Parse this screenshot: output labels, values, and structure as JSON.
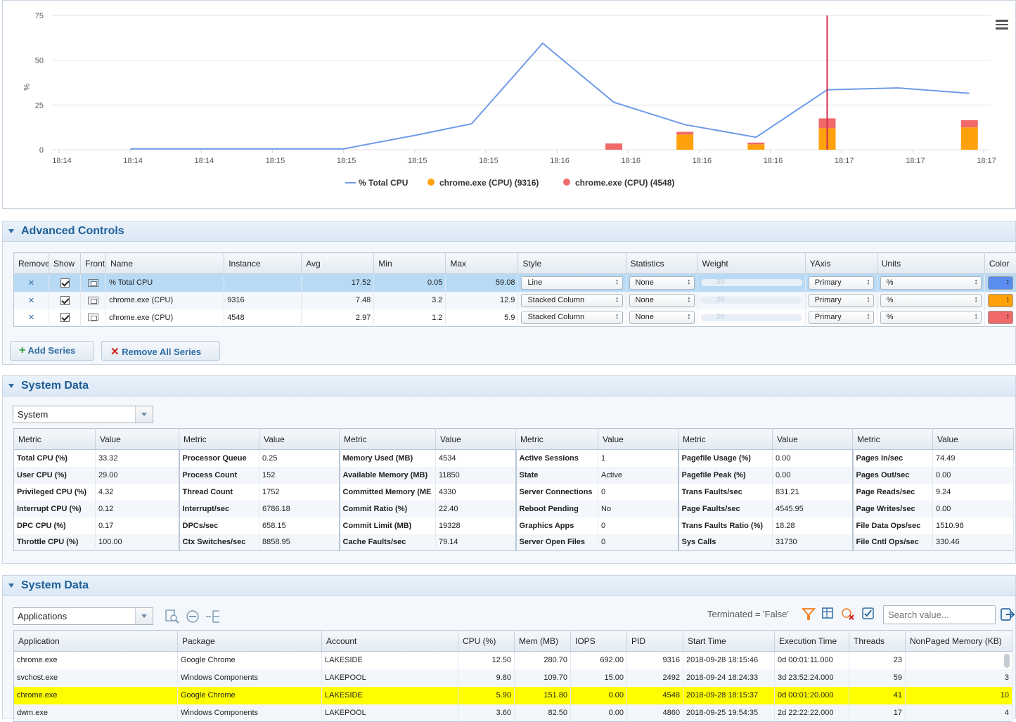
{
  "chart_data": {
    "type": "line",
    "ylabel": "%",
    "yticks": [
      "75",
      "50",
      "25",
      "0"
    ],
    "ylim": [
      0,
      75
    ],
    "xticks": [
      "18:14",
      "18:14",
      "18:14",
      "18:15",
      "18:15",
      "18:15",
      "18:15",
      "18:16",
      "18:16",
      "18:16",
      "18:16",
      "18:17",
      "18:17",
      "18:17"
    ],
    "grid": true,
    "legend_position": "bottom",
    "series": [
      {
        "name": "% Total CPU",
        "type": "line",
        "color": "#6f9be8",
        "points": [
          [
            1,
            0.5
          ],
          [
            2,
            0.5
          ],
          [
            3,
            0.5
          ],
          [
            4,
            0.5
          ],
          [
            5,
            8
          ],
          [
            5.8,
            14.5
          ],
          [
            6.8,
            59.5
          ],
          [
            7.8,
            26.5
          ],
          [
            8.8,
            14
          ],
          [
            9.8,
            7
          ],
          [
            10.8,
            33.5
          ],
          [
            11.8,
            34.5
          ],
          [
            12.8,
            31.5
          ]
        ]
      },
      {
        "name": "chrome.exe (CPU) (9316)",
        "type": "stacked_column",
        "color": "#ffa10a",
        "points": [
          [
            7.8,
            0
          ],
          [
            8.8,
            8.5
          ],
          [
            9.8,
            3
          ],
          [
            10.8,
            12
          ],
          [
            12.8,
            12.5
          ]
        ]
      },
      {
        "name": "chrome.exe (CPU) (4548)",
        "type": "stacked_column",
        "color": "#f06a6a",
        "points": [
          [
            7.8,
            3.5
          ],
          [
            8.8,
            1.5
          ],
          [
            9.8,
            1
          ],
          [
            10.8,
            5.5
          ],
          [
            12.8,
            4
          ]
        ]
      }
    ],
    "marker_x": 10.8,
    "marker_color": "#d12e52"
  },
  "advanced": {
    "title": "Advanced Controls",
    "headers": [
      "Remove",
      "Show",
      "Front",
      "Name",
      "Instance",
      "Avg",
      "Min",
      "Max",
      "Style",
      "Statistics",
      "Weight",
      "YAxis",
      "Units",
      "Color"
    ],
    "rows": [
      {
        "name": "% Total CPU",
        "instance": "",
        "avg": "17.52",
        "min": "0.05",
        "max": "59.08",
        "style": "Line",
        "stats": "None",
        "weight": "20",
        "yaxis": "Primary",
        "units": "%",
        "color": "#5b8df0"
      },
      {
        "name": "chrome.exe (CPU)",
        "instance": "9316",
        "avg": "7.48",
        "min": "3.2",
        "max": "12.9",
        "style": "Stacked Column",
        "stats": "None",
        "weight": "20",
        "yaxis": "Primary",
        "units": "%",
        "color": "#ffa10a"
      },
      {
        "name": "chrome.exe (CPU)",
        "instance": "4548",
        "avg": "2.97",
        "min": "1.2",
        "max": "5.9",
        "style": "Stacked Column",
        "stats": "None",
        "weight": "20",
        "yaxis": "Primary",
        "units": "%",
        "color": "#f06a6a"
      }
    ],
    "add_label": "Add Series",
    "remove_all_label": "Remove All Series"
  },
  "system1": {
    "title": "System Data",
    "combo": "System",
    "headers": [
      "Metric",
      "Value",
      "Metric",
      "Value",
      "Metric",
      "Value",
      "Metric",
      "Value",
      "Metric",
      "Value",
      "Metric",
      "Value"
    ],
    "rows": [
      [
        "Total CPU (%)",
        "33.32",
        "Processor Queue",
        "0.25",
        "Memory Used (MB)",
        "4534",
        "Active Sessions",
        "1",
        "Pagefile Usage (%)",
        "0.00",
        "Pages In/sec",
        "74.49"
      ],
      [
        "User CPU (%)",
        "29.00",
        "Process Count",
        "152",
        "Available Memory (MB)",
        "11850",
        "State",
        "Active",
        "Pagefile Peak (%)",
        "0.00",
        "Pages Out/sec",
        "0.00"
      ],
      [
        "Privileged CPU (%)",
        "4.32",
        "Thread Count",
        "1752",
        "Committed Memory (ME",
        "4330",
        "Server Connections",
        "0",
        "Trans Faults/sec",
        "831.21",
        "Page Reads/sec",
        "9.24"
      ],
      [
        "Interrupt CPU (%)",
        "0.12",
        "Interrupt/sec",
        "6786.18",
        "Commit Ratio (%)",
        "22.40",
        "Reboot Pending",
        "No",
        "Page Faults/sec",
        "4545.95",
        "Page Writes/sec",
        "0.00"
      ],
      [
        "DPC CPU (%)",
        "0.17",
        "DPCs/sec",
        "658.15",
        "Commit Limit (MB)",
        "19328",
        "Graphics Apps",
        "0",
        "Trans Faults Ratio (%)",
        "18.28",
        "File Data Ops/sec",
        "1510.98"
      ],
      [
        "Throttle CPU (%)",
        "100.00",
        "Ctx Switches/sec",
        "8858.95",
        "Cache Faults/sec",
        "79.14",
        "Server Open Files",
        "0",
        "Sys Calls",
        "31730",
        "File Cntl Ops/sec",
        "330.46"
      ]
    ]
  },
  "system2": {
    "title": "System Data",
    "combo": "Applications",
    "filter_text": "Terminated = 'False'",
    "search_placeholder": "Search value...",
    "headers": [
      "Application",
      "Package",
      "Account",
      "CPU (%)",
      "Mem (MB)",
      "IOPS",
      "PID",
      "Start Time",
      "Execution Time",
      "Threads",
      "NonPaged Memory (KB)"
    ],
    "rows": [
      [
        "chrome.exe",
        "Google Chrome",
        "LAKESIDE",
        "12.50",
        "280.70",
        "692.00",
        "9316",
        "2018-09-28 18:15:46",
        "0d 00:01:11.000",
        "23",
        "7"
      ],
      [
        "svchost.exe",
        "Windows Components",
        "LAKEPOOL",
        "9.80",
        "109.70",
        "15.00",
        "2492",
        "2018-09-24 18:24:33",
        "3d 23:52:24.000",
        "59",
        "3"
      ],
      [
        "chrome.exe",
        "Google Chrome",
        "LAKESIDE",
        "5.90",
        "151.80",
        "0.00",
        "4548",
        "2018-09-28 18:15:37",
        "0d 00:01:20.000",
        "41",
        "10"
      ],
      [
        "dwm.exe",
        "Windows Components",
        "LAKEPOOL",
        "3.60",
        "82.50",
        "0.00",
        "4860",
        "2018-09-25 19:54:35",
        "2d 22:22:22.000",
        "17",
        "4"
      ]
    ]
  }
}
